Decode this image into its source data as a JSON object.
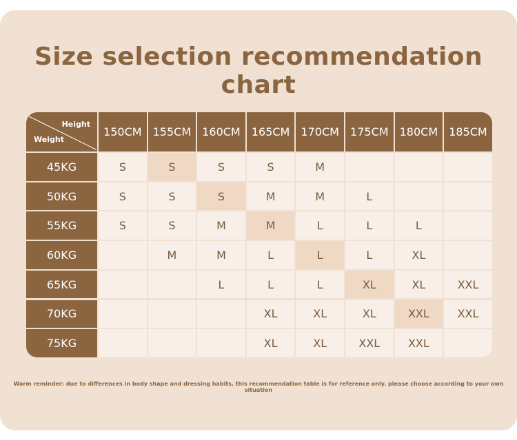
{
  "title": "Size selection recommendation chart",
  "corner": {
    "height_label": "Height",
    "weight_label": "Weight"
  },
  "note": "Warm reminder: due to differences in body shape and dressing habits, this recommendation table is for reference only. please choose according to your own situation",
  "colors": {
    "header_brown": "#8b6440",
    "cell_light": "#f8efe8",
    "cell_highlight": "#efd9c5",
    "background": "#f0e1d3"
  },
  "chart_data": {
    "type": "table",
    "title": "Size selection recommendation chart",
    "columns": [
      "150CM",
      "155CM",
      "160CM",
      "165CM",
      "170CM",
      "175CM",
      "180CM",
      "185CM"
    ],
    "rows": [
      {
        "label": "45KG",
        "cells": [
          "S",
          "S",
          "S",
          "S",
          "M",
          "",
          "",
          ""
        ],
        "highlight": 1
      },
      {
        "label": "50KG",
        "cells": [
          "S",
          "S",
          "S",
          "M",
          "M",
          "L",
          "",
          ""
        ],
        "highlight": 2
      },
      {
        "label": "55KG",
        "cells": [
          "S",
          "S",
          "M",
          "M",
          "L",
          "L",
          "L",
          ""
        ],
        "highlight": 3
      },
      {
        "label": "60KG",
        "cells": [
          "",
          "M",
          "M",
          "L",
          "L",
          "L",
          "XL",
          ""
        ],
        "highlight": 4
      },
      {
        "label": "65KG",
        "cells": [
          "",
          "",
          "L",
          "L",
          "L",
          "XL",
          "XL",
          "XXL"
        ],
        "highlight": 5
      },
      {
        "label": "70KG",
        "cells": [
          "",
          "",
          "",
          "XL",
          "XL",
          "XL",
          "XXL",
          "XXL"
        ],
        "highlight": 6
      },
      {
        "label": "75KG",
        "cells": [
          "",
          "",
          "",
          "XL",
          "XL",
          "XXL",
          "XXL",
          ""
        ],
        "highlight": -1
      }
    ]
  }
}
